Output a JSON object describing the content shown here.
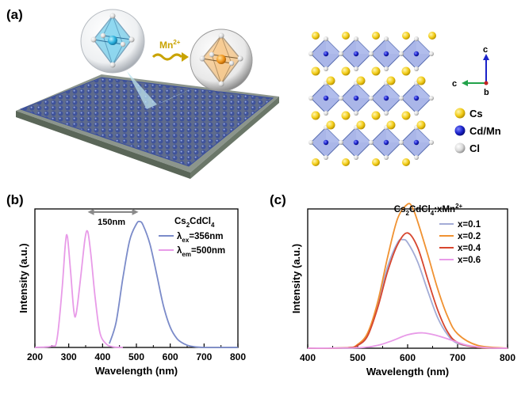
{
  "panels": {
    "a": "(a)",
    "b": "(b)",
    "c": "(c)"
  },
  "illustration": {
    "dopant_label_base": "Mn",
    "dopant_label_sup": "2+"
  },
  "crystal": {
    "axes": {
      "c_up": "c",
      "c_left": "c",
      "b": "b"
    },
    "legend": [
      {
        "label": "Cs",
        "color": "#f2cc17"
      },
      {
        "label": "Cd/Mn",
        "color": "#1a22c9"
      },
      {
        "label": "Cl",
        "color": "#d9d9d9"
      }
    ]
  },
  "chart_data": [
    {
      "type": "line",
      "panel": "b",
      "title_base": "Cs",
      "title_parts": [
        "2",
        "CdCl",
        "4"
      ],
      "xlabel": "Wavelength (nm)",
      "ylabel": "Intensity (a.u.)",
      "xlim": [
        200,
        800
      ],
      "ylim": [
        0,
        1.1
      ],
      "xticks": [
        200,
        300,
        400,
        500,
        600,
        700,
        800
      ],
      "annotation": "150nm",
      "series": [
        {
          "name_sym": "λ",
          "name_sub": "ex",
          "name_rest": "=356nm",
          "color": "#7b8bc9",
          "x": [
            420,
            440,
            460,
            480,
            500,
            510,
            520,
            540,
            560,
            580,
            600,
            620,
            640,
            660,
            700,
            800
          ],
          "y": [
            0.03,
            0.2,
            0.55,
            0.85,
            0.98,
            1.0,
            0.97,
            0.82,
            0.58,
            0.33,
            0.16,
            0.07,
            0.03,
            0.01,
            0.0,
            0.0
          ]
        },
        {
          "name_sym": "λ",
          "name_sub": "em",
          "name_rest": "=500nm",
          "color": "#e89be8",
          "x": [
            200,
            250,
            265,
            280,
            290,
            296,
            305,
            315,
            322,
            335,
            348,
            356,
            365,
            378,
            392,
            410,
            430,
            460
          ],
          "y": [
            0.0,
            0.01,
            0.06,
            0.45,
            0.82,
            0.88,
            0.62,
            0.29,
            0.27,
            0.55,
            0.86,
            0.92,
            0.75,
            0.4,
            0.12,
            0.03,
            0.005,
            0.0
          ]
        }
      ]
    },
    {
      "type": "line",
      "panel": "c",
      "title_base": "Cs",
      "title_parts": [
        "2",
        "CdCl",
        "4",
        ":xMn",
        "2+"
      ],
      "xlabel": "Wavelength (nm)",
      "ylabel": "Intensity (a.u.)",
      "xlim": [
        400,
        800
      ],
      "ylim": [
        0,
        1.45
      ],
      "xticks": [
        400,
        500,
        600,
        700,
        800
      ],
      "series": [
        {
          "name": "x=0.1",
          "color": "#a3acd6",
          "x": [
            400,
            480,
            500,
            520,
            540,
            560,
            580,
            590,
            600,
            620,
            640,
            660,
            680,
            700,
            740,
            800
          ],
          "y": [
            0.0,
            0.005,
            0.03,
            0.13,
            0.45,
            0.85,
            1.1,
            1.13,
            1.1,
            0.9,
            0.6,
            0.32,
            0.14,
            0.05,
            0.01,
            0.0
          ]
        },
        {
          "name": "x=0.2",
          "color": "#f09232",
          "x": [
            400,
            480,
            500,
            520,
            540,
            560,
            580,
            600,
            610,
            620,
            640,
            660,
            680,
            700,
            740,
            800
          ],
          "y": [
            0.0,
            0.005,
            0.04,
            0.16,
            0.48,
            0.95,
            1.35,
            1.5,
            1.46,
            1.32,
            0.98,
            0.62,
            0.33,
            0.15,
            0.03,
            0.0
          ]
        },
        {
          "name": "x=0.4",
          "color": "#d7462f",
          "x": [
            400,
            480,
            500,
            520,
            540,
            560,
            580,
            600,
            620,
            640,
            660,
            680,
            700,
            740,
            800
          ],
          "y": [
            0.0,
            0.005,
            0.03,
            0.13,
            0.42,
            0.8,
            1.08,
            1.2,
            1.05,
            0.72,
            0.4,
            0.17,
            0.06,
            0.01,
            0.0
          ]
        },
        {
          "name": "x=0.6",
          "color": "#e89be8",
          "x": [
            400,
            500,
            540,
            570,
            600,
            630,
            660,
            690,
            720,
            760,
            800
          ],
          "y": [
            0.0,
            0.005,
            0.03,
            0.08,
            0.14,
            0.16,
            0.13,
            0.08,
            0.03,
            0.005,
            0.0
          ]
        }
      ]
    }
  ]
}
